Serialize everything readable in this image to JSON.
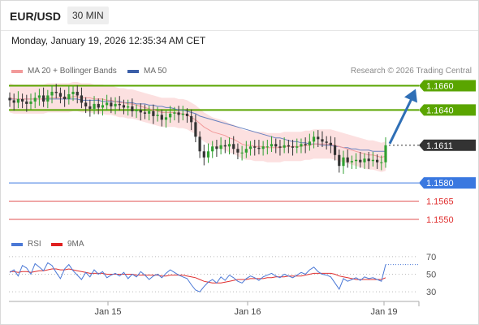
{
  "header": {
    "symbol": "EUR/USD",
    "timeframe": "30 MIN",
    "datetime": "Monday, January 19, 2026 12:35:34 AM CET"
  },
  "legend": {
    "ma20_label": "MA 20 + Bollinger Bands",
    "ma50_label": "MA 50",
    "rsi_label": "RSI",
    "rsi_ma_label": "9MA",
    "credit": "Research © 2026 Trading Central"
  },
  "colors": {
    "resistance": "#5aa500",
    "current": "#333333",
    "pivot": "#3a78e0",
    "support": "#e05050",
    "band": "#fbd5d5",
    "ma20": "#f29a9a",
    "ma50": "#6680c0",
    "bull": "#30a030",
    "bear": "#333333",
    "arrow": "#2f6fb6",
    "rsi": "#4a78d6",
    "rsi_ma": "#e03030"
  },
  "chart_data": [
    {
      "type": "candlestick",
      "title": "EUR/USD 30 MIN",
      "ylim": [
        1.154,
        1.1665
      ],
      "x_ticks": [
        "Jan 15",
        "Jan 16",
        "Jan 19"
      ],
      "levels": [
        {
          "label": "1.1660",
          "value": 1.166,
          "kind": "resistance"
        },
        {
          "label": "1.1640",
          "value": 1.164,
          "kind": "resistance"
        },
        {
          "label": "1.1611",
          "value": 1.1611,
          "kind": "current"
        },
        {
          "label": "1.1580",
          "value": 1.158,
          "kind": "pivot"
        },
        {
          "label": "1.1565",
          "value": 1.1565,
          "kind": "support"
        },
        {
          "label": "1.1550",
          "value": 1.155,
          "kind": "support"
        }
      ],
      "close_series": [
        1.1648,
        1.1646,
        1.1649,
        1.1647,
        1.1645,
        1.1647,
        1.165,
        1.1652,
        1.1647,
        1.1652,
        1.1655,
        1.1654,
        1.1651,
        1.1649,
        1.1653,
        1.1655,
        1.1652,
        1.1646,
        1.1643,
        1.1641,
        1.1645,
        1.1642,
        1.1644,
        1.1646,
        1.1643,
        1.1645,
        1.1644,
        1.1642,
        1.1643,
        1.1639,
        1.164,
        1.1638,
        1.1637,
        1.1639,
        1.1635,
        1.1636,
        1.1632,
        1.1634,
        1.1637,
        1.1638,
        1.1636,
        1.1637,
        1.1635,
        1.163,
        1.1618,
        1.1606,
        1.1601,
        1.1606,
        1.161,
        1.1608,
        1.1611,
        1.161,
        1.1612,
        1.1608,
        1.1605,
        1.1605,
        1.1608,
        1.161,
        1.1609,
        1.1608,
        1.161,
        1.161,
        1.1612,
        1.161,
        1.1609,
        1.1611,
        1.161,
        1.1609,
        1.161,
        1.1612,
        1.1611,
        1.1614,
        1.1618,
        1.1616,
        1.1614,
        1.1613,
        1.1611,
        1.1603,
        1.1594,
        1.1601,
        1.1597,
        1.1598,
        1.1599,
        1.1597,
        1.16,
        1.1598,
        1.1599,
        1.1597,
        1.1597,
        1.1611
      ],
      "ma20_series": [
        1.165,
        1.1649,
        1.1649,
        1.1649,
        1.1649,
        1.1649,
        1.1649,
        1.1649,
        1.1649,
        1.165,
        1.165,
        1.165,
        1.165,
        1.165,
        1.165,
        1.1651,
        1.1651,
        1.165,
        1.165,
        1.165,
        1.1649,
        1.1649,
        1.1649,
        1.1648,
        1.1648,
        1.1647,
        1.1646,
        1.1646,
        1.1645,
        1.1645,
        1.1644,
        1.1643,
        1.1642,
        1.1641,
        1.164,
        1.1639,
        1.1638,
        1.1638,
        1.1638,
        1.1638,
        1.1637,
        1.1637,
        1.1636,
        1.1634,
        1.1632,
        1.1629,
        1.1626,
        1.1624,
        1.1622,
        1.1621,
        1.162,
        1.1619,
        1.1617,
        1.1616,
        1.1614,
        1.1612,
        1.1611,
        1.1611,
        1.161,
        1.161,
        1.161,
        1.1609,
        1.1609,
        1.1609,
        1.1609,
        1.161,
        1.161,
        1.161,
        1.161,
        1.161,
        1.1611,
        1.1611,
        1.1612,
        1.1612,
        1.1612,
        1.1612,
        1.1612,
        1.1611,
        1.161,
        1.1609,
        1.1608,
        1.1607,
        1.1606,
        1.1605,
        1.1604,
        1.1603,
        1.1603,
        1.1602,
        1.1601,
        1.1602
      ],
      "ma50_series": [
        1.1649,
        1.1649,
        1.1649,
        1.1649,
        1.1649,
        1.1649,
        1.1649,
        1.1649,
        1.1649,
        1.1649,
        1.1649,
        1.1649,
        1.1649,
        1.1649,
        1.1649,
        1.1649,
        1.1649,
        1.1648,
        1.1648,
        1.1648,
        1.1648,
        1.1648,
        1.1647,
        1.1647,
        1.1647,
        1.1647,
        1.1647,
        1.1646,
        1.1646,
        1.1646,
        1.1645,
        1.1645,
        1.1645,
        1.1644,
        1.1644,
        1.1643,
        1.1643,
        1.1642,
        1.1642,
        1.1641,
        1.164,
        1.164,
        1.1639,
        1.1638,
        1.1637,
        1.1635,
        1.1634,
        1.1633,
        1.1632,
        1.1631,
        1.163,
        1.1629,
        1.1628,
        1.1627,
        1.1626,
        1.1625,
        1.1624,
        1.1623,
        1.1622,
        1.1621,
        1.162,
        1.1619,
        1.1618,
        1.1617,
        1.1617,
        1.1616,
        1.1615,
        1.1614,
        1.1614,
        1.1613,
        1.1613,
        1.1612,
        1.1612,
        1.1612,
        1.1611,
        1.1611,
        1.1611,
        1.161,
        1.161,
        1.1609,
        1.1609,
        1.1608,
        1.1608,
        1.1607,
        1.1607,
        1.1607,
        1.1606,
        1.1606,
        1.1606,
        1.1606
      ],
      "band_width": 0.0012,
      "projection": {
        "from": 1.1611,
        "to": 1.166
      }
    },
    {
      "type": "line",
      "title": "RSI",
      "ylim": [
        20,
        80
      ],
      "y_ticks": [
        70,
        50,
        30
      ],
      "series": [
        {
          "name": "RSI",
          "values": [
            52,
            55,
            48,
            60,
            57,
            50,
            62,
            58,
            54,
            63,
            60,
            52,
            45,
            56,
            61,
            54,
            49,
            44,
            52,
            47,
            55,
            50,
            53,
            46,
            49,
            51,
            48,
            52,
            45,
            50,
            47,
            53,
            49,
            44,
            48,
            50,
            46,
            51,
            55,
            52,
            49,
            47,
            45,
            38,
            32,
            30,
            36,
            41,
            44,
            40,
            47,
            43,
            49,
            46,
            42,
            40,
            45,
            48,
            46,
            43,
            47,
            49,
            51,
            48,
            46,
            50,
            48,
            46,
            49,
            52,
            50,
            55,
            58,
            53,
            50,
            49,
            47,
            40,
            33,
            45,
            42,
            44,
            46,
            43,
            47,
            45,
            46,
            44,
            42,
            61
          ]
        },
        {
          "name": "9MA",
          "values": [
            53,
            53,
            52,
            53,
            53,
            52,
            53,
            54,
            54,
            55,
            56,
            56,
            55,
            55,
            56,
            55,
            54,
            53,
            52,
            51,
            51,
            51,
            51,
            50,
            50,
            50,
            50,
            50,
            50,
            50,
            49,
            49,
            49,
            49,
            49,
            49,
            48,
            48,
            49,
            49,
            49,
            49,
            48,
            47,
            46,
            44,
            42,
            41,
            40,
            40,
            40,
            41,
            42,
            43,
            44,
            44,
            44,
            45,
            45,
            45,
            45,
            46,
            46,
            47,
            47,
            47,
            48,
            48,
            48,
            48,
            49,
            50,
            51,
            51,
            51,
            51,
            51,
            50,
            48,
            47,
            46,
            45,
            44,
            44,
            44,
            44,
            44,
            44,
            44,
            46
          ]
        }
      ]
    }
  ]
}
